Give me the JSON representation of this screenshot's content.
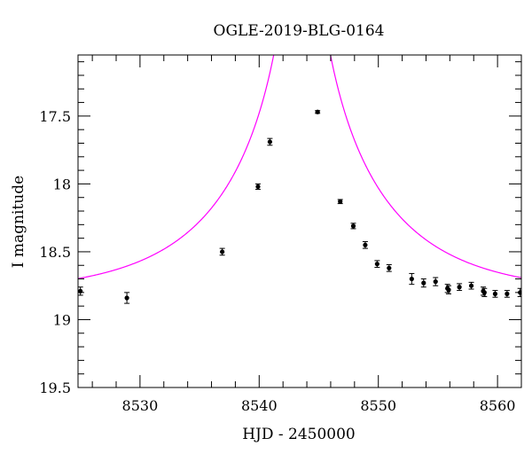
{
  "chart_data": {
    "type": "scatter",
    "title": "OGLE-2019-BLG-0164",
    "xlabel": "HJD - 2450000",
    "ylabel": "I magnitude",
    "xlim": [
      8524.8,
      8562.0
    ],
    "ylim": [
      19.5,
      17.05
    ],
    "y_inverted": true,
    "grid": false,
    "x_ticks_major": [
      8530,
      8540,
      8550,
      8560
    ],
    "x_ticks_minor_step": 2,
    "y_ticks_major": [
      17.5,
      18,
      18.5,
      19,
      19.5
    ],
    "y_tick_labels": [
      "17.5",
      "18",
      "18.5",
      "19",
      "19.5"
    ],
    "y_ticks_minor_step": 0.1,
    "series": [
      {
        "kind": "points",
        "color": "#000000",
        "points": [
          {
            "x": 8525.0,
            "y": 18.79,
            "err": 0.03
          },
          {
            "x": 8528.9,
            "y": 18.84,
            "err": 0.04
          },
          {
            "x": 8536.9,
            "y": 18.5,
            "err": 0.025
          },
          {
            "x": 8539.9,
            "y": 18.02,
            "err": 0.02
          },
          {
            "x": 8540.9,
            "y": 17.69,
            "err": 0.025
          },
          {
            "x": 8544.9,
            "y": 17.47,
            "err": 0.01
          },
          {
            "x": 8546.8,
            "y": 18.13,
            "err": 0.015
          },
          {
            "x": 8547.9,
            "y": 18.31,
            "err": 0.02
          },
          {
            "x": 8548.9,
            "y": 18.45,
            "err": 0.025
          },
          {
            "x": 8549.9,
            "y": 18.59,
            "err": 0.025
          },
          {
            "x": 8550.9,
            "y": 18.62,
            "err": 0.025
          },
          {
            "x": 8552.8,
            "y": 18.7,
            "err": 0.04
          },
          {
            "x": 8553.8,
            "y": 18.73,
            "err": 0.03
          },
          {
            "x": 8554.8,
            "y": 18.72,
            "err": 0.03
          },
          {
            "x": 8555.8,
            "y": 18.77,
            "err": 0.03
          },
          {
            "x": 8555.9,
            "y": 18.78,
            "err": 0.03
          },
          {
            "x": 8556.8,
            "y": 18.76,
            "err": 0.025
          },
          {
            "x": 8557.8,
            "y": 18.75,
            "err": 0.025
          },
          {
            "x": 8558.8,
            "y": 18.79,
            "err": 0.03
          },
          {
            "x": 8558.9,
            "y": 18.8,
            "err": 0.03
          },
          {
            "x": 8559.8,
            "y": 18.81,
            "err": 0.025
          },
          {
            "x": 8560.8,
            "y": 18.81,
            "err": 0.025
          },
          {
            "x": 8561.9,
            "y": 18.8,
            "err": 0.03
          }
        ]
      },
      {
        "kind": "model-curve",
        "color": "#ff00ff",
        "baseline_mag": 18.82,
        "t0": 8543.6,
        "u0": 0.01,
        "tE": 12.0
      }
    ]
  }
}
